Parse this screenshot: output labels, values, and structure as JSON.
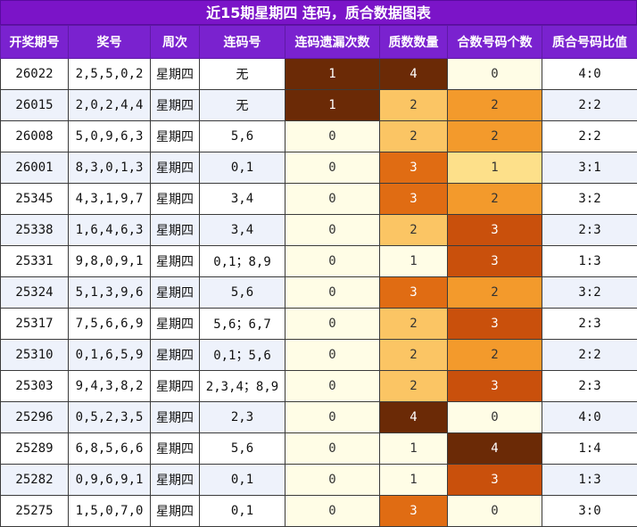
{
  "title": "近15期星期四 连码，质合数据图表",
  "headers": [
    "开奖期号",
    "奖号",
    "周次",
    "连码号",
    "连码遗漏次数",
    "质数数量",
    "合数号码个数",
    "质合号码比值"
  ],
  "colors": {
    "title_bg": "#7b14c8",
    "header_bg": "#7a22cf",
    "cell_light": "#fffde6",
    "cell_yellow": "#fde08a",
    "cell_gold": "#fbc564",
    "cell_orange": "#e06c13",
    "cell_brown": "#6b2a06",
    "cell_amber": "#f39a2c",
    "cell_rust": "#c9500c"
  },
  "rows": [
    {
      "period": "26022",
      "numbers": "2,5,5,0,2",
      "week": "星期四",
      "consec": "无",
      "miss": "1",
      "prime": "4",
      "composite": "0",
      "ratio": "4:0"
    },
    {
      "period": "26015",
      "numbers": "2,0,2,4,4",
      "week": "星期四",
      "consec": "无",
      "miss": "1",
      "prime": "2",
      "composite": "2",
      "ratio": "2:2"
    },
    {
      "period": "26008",
      "numbers": "5,0,9,6,3",
      "week": "星期四",
      "consec": "5,6",
      "miss": "0",
      "prime": "2",
      "composite": "2",
      "ratio": "2:2"
    },
    {
      "period": "26001",
      "numbers": "8,3,0,1,3",
      "week": "星期四",
      "consec": "0,1",
      "miss": "0",
      "prime": "3",
      "composite": "1",
      "ratio": "3:1"
    },
    {
      "period": "25345",
      "numbers": "4,3,1,9,7",
      "week": "星期四",
      "consec": "3,4",
      "miss": "0",
      "prime": "3",
      "composite": "2",
      "ratio": "3:2"
    },
    {
      "period": "25338",
      "numbers": "1,6,4,6,3",
      "week": "星期四",
      "consec": "3,4",
      "miss": "0",
      "prime": "2",
      "composite": "3",
      "ratio": "2:3"
    },
    {
      "period": "25331",
      "numbers": "9,8,0,9,1",
      "week": "星期四",
      "consec": "0,1；8,9",
      "miss": "0",
      "prime": "1",
      "composite": "3",
      "ratio": "1:3"
    },
    {
      "period": "25324",
      "numbers": "5,1,3,9,6",
      "week": "星期四",
      "consec": "5,6",
      "miss": "0",
      "prime": "3",
      "composite": "2",
      "ratio": "3:2"
    },
    {
      "period": "25317",
      "numbers": "7,5,6,6,9",
      "week": "星期四",
      "consec": "5,6；6,7",
      "miss": "0",
      "prime": "2",
      "composite": "3",
      "ratio": "2:3"
    },
    {
      "period": "25310",
      "numbers": "0,1,6,5,9",
      "week": "星期四",
      "consec": "0,1；5,6",
      "miss": "0",
      "prime": "2",
      "composite": "2",
      "ratio": "2:2"
    },
    {
      "period": "25303",
      "numbers": "9,4,3,8,2",
      "week": "星期四",
      "consec": "2,3,4；8,9",
      "miss": "0",
      "prime": "2",
      "composite": "3",
      "ratio": "2:3"
    },
    {
      "period": "25296",
      "numbers": "0,5,2,3,5",
      "week": "星期四",
      "consec": "2,3",
      "miss": "0",
      "prime": "4",
      "composite": "0",
      "ratio": "4:0"
    },
    {
      "period": "25289",
      "numbers": "6,8,5,6,6",
      "week": "星期四",
      "consec": "5,6",
      "miss": "0",
      "prime": "1",
      "composite": "4",
      "ratio": "1:4"
    },
    {
      "period": "25282",
      "numbers": "0,9,6,9,1",
      "week": "星期四",
      "consec": "0,1",
      "miss": "0",
      "prime": "1",
      "composite": "3",
      "ratio": "1:3"
    },
    {
      "period": "25275",
      "numbers": "1,5,0,7,0",
      "week": "星期四",
      "consec": "0,1",
      "miss": "0",
      "prime": "3",
      "composite": "0",
      "ratio": "3:0"
    }
  ]
}
